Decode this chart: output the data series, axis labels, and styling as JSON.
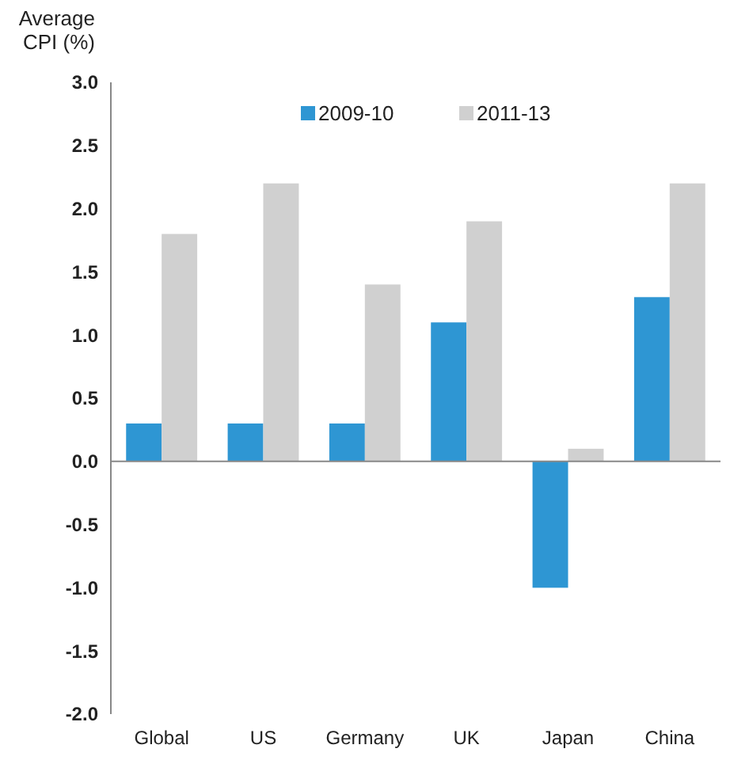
{
  "chart_data": {
    "type": "bar",
    "ylabel": "Average\nCPI (%)",
    "categories": [
      "Global",
      "US",
      "Germany",
      "UK",
      "Japan",
      "China"
    ],
    "series": [
      {
        "name": "2009-10",
        "color": "#2e96d3",
        "values": [
          0.3,
          0.3,
          0.3,
          1.1,
          -1.0,
          1.3
        ]
      },
      {
        "name": "2011-13",
        "color": "#d0d0d0",
        "values": [
          1.8,
          2.2,
          1.4,
          1.9,
          0.1,
          2.2
        ]
      }
    ],
    "ylim": [
      -2.0,
      3.0
    ],
    "yticks": [
      {
        "value": -2,
        "label": "-2.0"
      },
      {
        "value": -1.5,
        "label": "-1.5"
      },
      {
        "value": -1,
        "label": "-1.0"
      },
      {
        "value": -0.5,
        "label": "-0.5"
      },
      {
        "value": 0,
        "label": "0.0"
      },
      {
        "value": 0.5,
        "label": "0.5"
      },
      {
        "value": 1,
        "label": "1.0"
      },
      {
        "value": 1.5,
        "label": "1.5"
      },
      {
        "value": 2,
        "label": "2.0"
      },
      {
        "value": 2.5,
        "label": "2.5"
      },
      {
        "value": 3,
        "label": "3.0"
      }
    ],
    "legend": "top"
  }
}
